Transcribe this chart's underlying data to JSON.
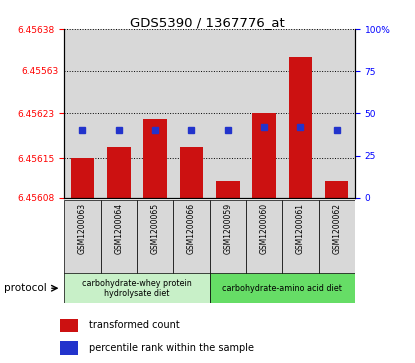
{
  "title": "GDS5390 / 1367776_at",
  "samples": [
    "GSM1200063",
    "GSM1200064",
    "GSM1200065",
    "GSM1200066",
    "GSM1200059",
    "GSM1200060",
    "GSM1200061",
    "GSM1200062"
  ],
  "red_values": [
    6.45615,
    6.45617,
    6.45622,
    6.45617,
    6.45611,
    6.45623,
    6.45633,
    6.45611
  ],
  "blue_percentile": [
    40,
    40,
    40,
    40,
    40,
    42,
    42,
    40
  ],
  "y_min": 6.45608,
  "y_max": 6.45638,
  "y_ticks_left": [
    6.45608,
    6.45615,
    6.45623,
    6.45563,
    6.45638
  ],
  "y_tick_labels_left": [
    "6.45608",
    "6.45615",
    "6.45623",
    "6.45563",
    "6.45638"
  ],
  "right_y_ticks": [
    0,
    25,
    50,
    75,
    100
  ],
  "right_y_labels": [
    "0",
    "25",
    "50",
    "75",
    "100%"
  ],
  "dotted_lines": [
    6.45615,
    6.45623,
    6.45563,
    6.45638
  ],
  "group1_label": "carbohydrate-whey protein\nhydrolysate diet",
  "group2_label": "carbohydrate-amino acid diet",
  "group1_color": "#c8f0c8",
  "group2_color": "#66dd66",
  "protocol_label": "protocol",
  "legend_red_label": "transformed count",
  "legend_blue_label": "percentile rank within the sample",
  "bar_color": "#cc1111",
  "marker_color": "#2233cc",
  "base_value": 6.45608,
  "bar_width": 0.65,
  "bg_color": "#d8d8d8"
}
